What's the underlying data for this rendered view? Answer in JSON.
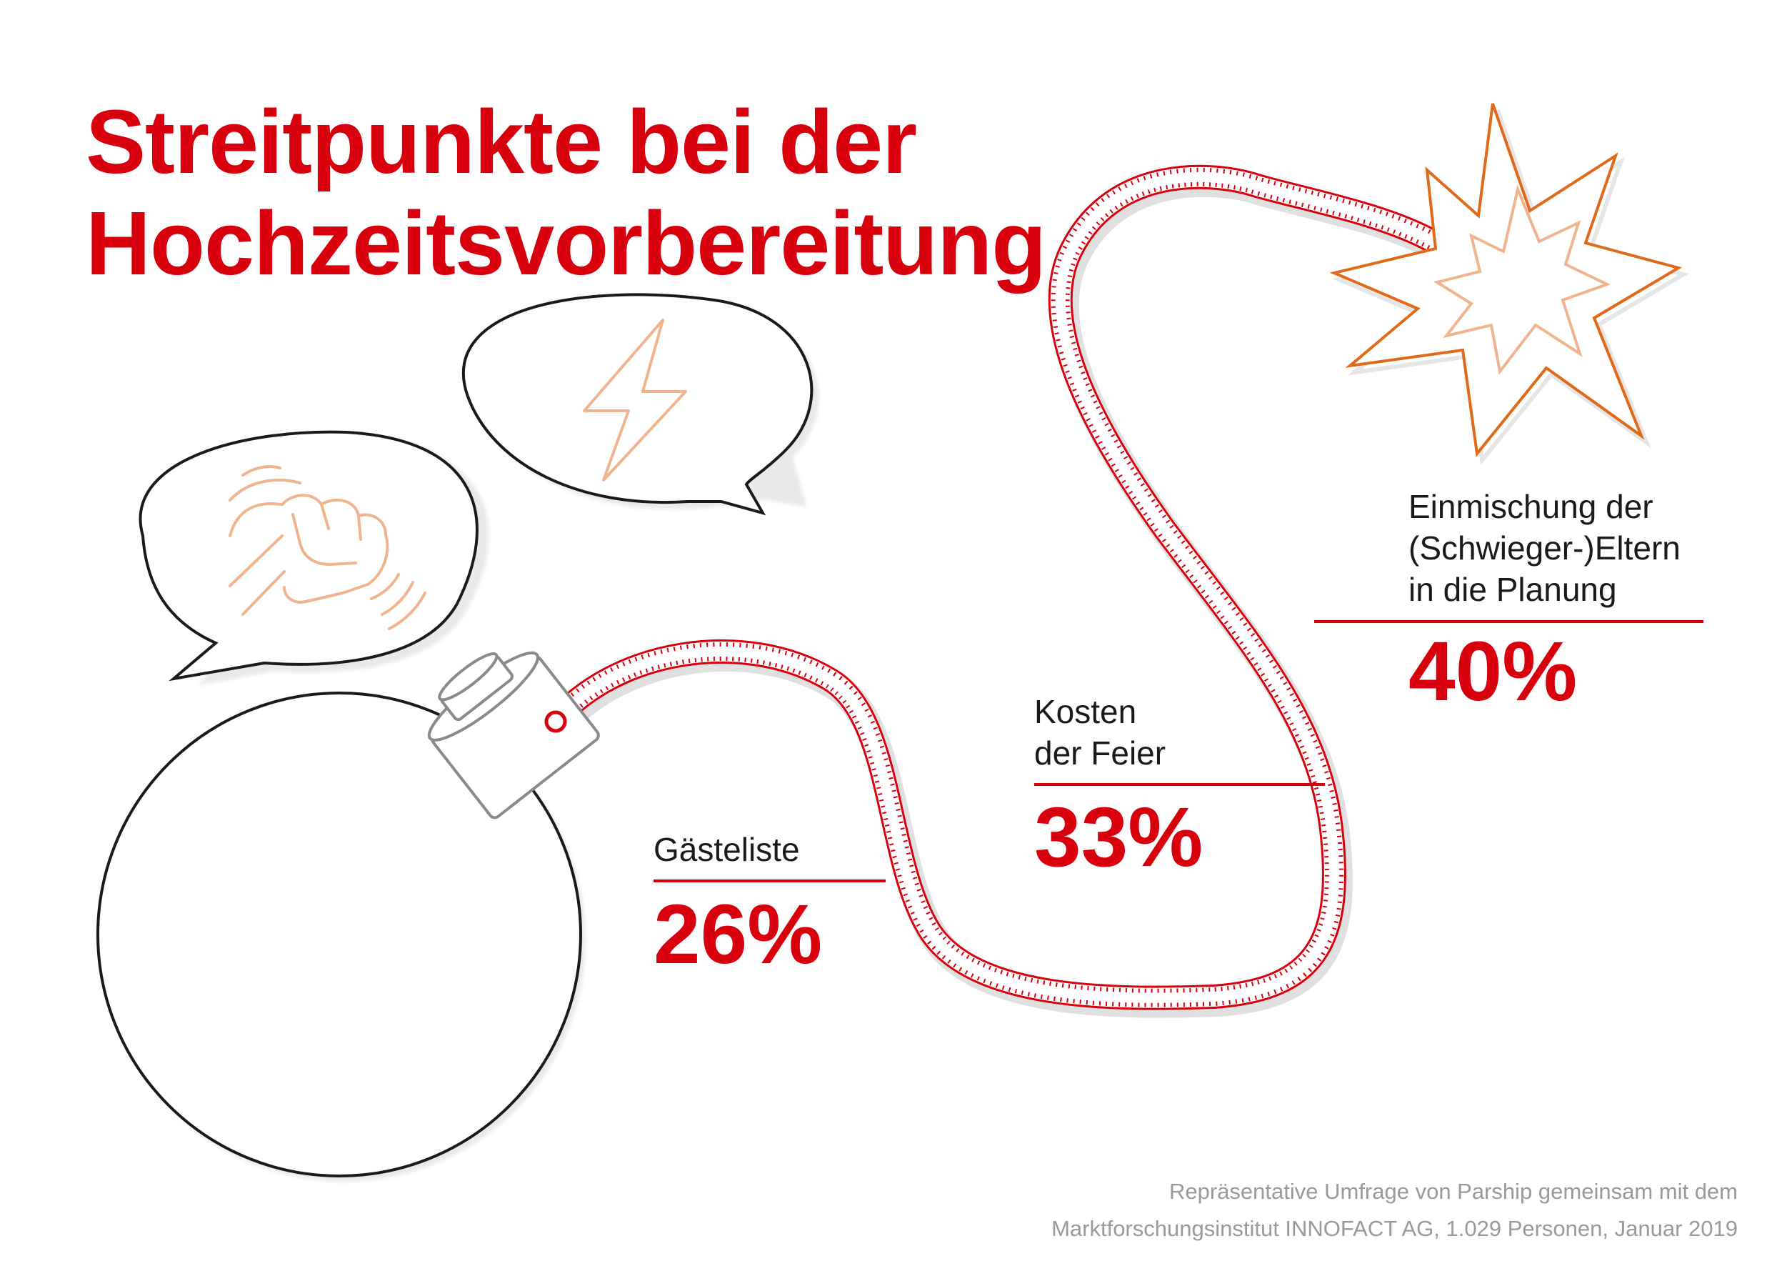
{
  "chart_data": {
    "type": "bar",
    "title": [
      "Streitpunkte bei der",
      "Hochzeitsvorbereitung"
    ],
    "categories": [
      [
        "Gästeliste"
      ],
      [
        "Kosten",
        "der Feier"
      ],
      [
        "Einmischung der",
        "(Schwieger-)Eltern",
        "in die Planung"
      ]
    ],
    "values": [
      26,
      33,
      40
    ],
    "value_labels": [
      "26%",
      "33%",
      "40%"
    ],
    "unit": "%"
  },
  "source": [
    "Repräsentative Umfrage von Parship gemeinsam mit dem",
    "Marktforschungsinstitut INNOFACT AG, 1.029 Personen, Januar 2019"
  ],
  "colors": {
    "accent": "#d8000c",
    "outline": "#1a1a1a",
    "icon_orange": "#e06a1a",
    "icon_peach": "#f0b48f",
    "source_text": "#9a9a9a"
  },
  "icons": [
    "bomb-icon",
    "fuse-icon",
    "explosion-icon",
    "speech-bubble-fist-icon",
    "speech-bubble-lightning-icon"
  ]
}
